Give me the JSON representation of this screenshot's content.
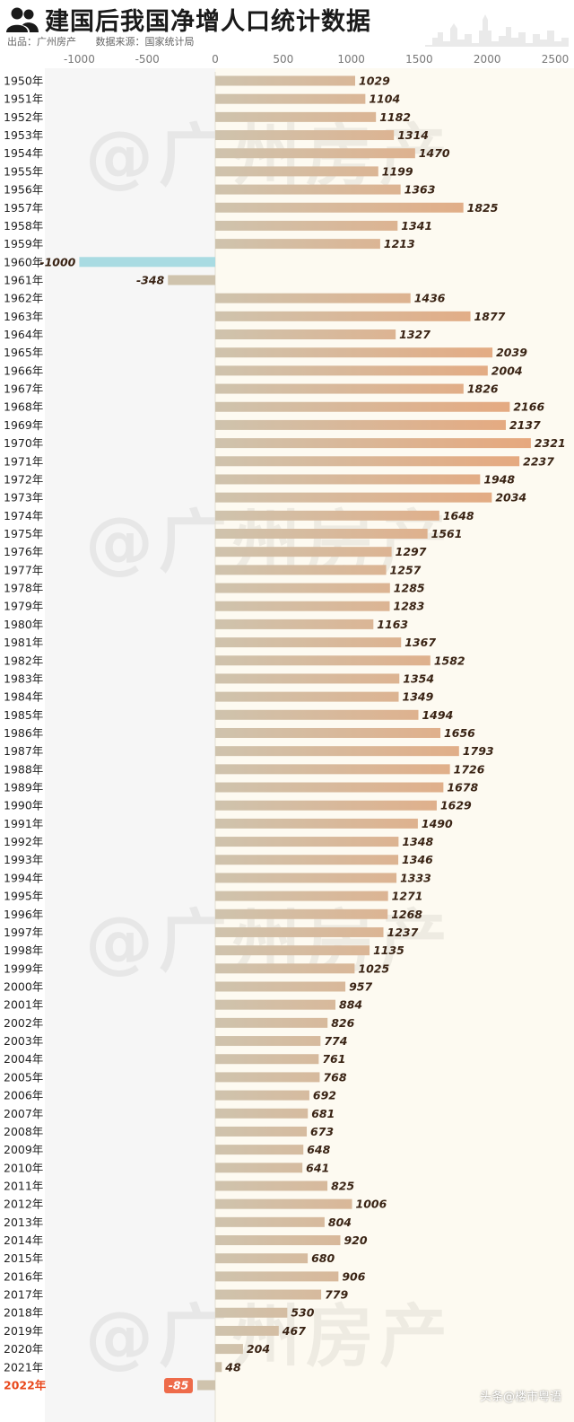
{
  "header": {
    "title": "建国后我国净增人口统计数据",
    "producer": "出品：广州房产",
    "source": "数据来源：国家统计局"
  },
  "watermark": "@广州房产",
  "credit": "头条@楼市粤语",
  "colors": {
    "bar_left": "#cfc3ad",
    "bar_right": "#e8a67a",
    "bar_negative": "#a9dbe2",
    "highlight_label": "#e8471b",
    "highlight_badge": "#ee6b4a",
    "bg_right": "#fdfaf1"
  },
  "chart_data": {
    "type": "bar",
    "orientation": "horizontal",
    "categories": [
      "1950年",
      "1951年",
      "1952年",
      "1953年",
      "1954年",
      "1955年",
      "1956年",
      "1957年",
      "1958年",
      "1959年",
      "1960年",
      "1961年",
      "1962年",
      "1963年",
      "1964年",
      "1965年",
      "1966年",
      "1967年",
      "1968年",
      "1969年",
      "1970年",
      "1971年",
      "1972年",
      "1973年",
      "1974年",
      "1975年",
      "1976年",
      "1977年",
      "1978年",
      "1979年",
      "1980年",
      "1981年",
      "1982年",
      "1983年",
      "1984年",
      "1985年",
      "1986年",
      "1987年",
      "1988年",
      "1989年",
      "1990年",
      "1991年",
      "1992年",
      "1993年",
      "1994年",
      "1995年",
      "1996年",
      "1997年",
      "1998年",
      "1999年",
      "2000年",
      "2001年",
      "2002年",
      "2003年",
      "2004年",
      "2005年",
      "2006年",
      "2007年",
      "2008年",
      "2009年",
      "2010年",
      "2011年",
      "2012年",
      "2013年",
      "2014年",
      "2015年",
      "2016年",
      "2017年",
      "2018年",
      "2019年",
      "2020年",
      "2021年",
      "2022年"
    ],
    "values": [
      1029,
      1104,
      1182,
      1314,
      1470,
      1199,
      1363,
      1825,
      1341,
      1213,
      -1000,
      -348,
      1436,
      1877,
      1327,
      2039,
      2004,
      1826,
      2166,
      2137,
      2321,
      2237,
      1948,
      2034,
      1648,
      1561,
      1297,
      1257,
      1285,
      1283,
      1163,
      1367,
      1582,
      1354,
      1349,
      1494,
      1656,
      1793,
      1726,
      1678,
      1629,
      1490,
      1348,
      1346,
      1333,
      1271,
      1268,
      1237,
      1135,
      1025,
      957,
      884,
      826,
      774,
      761,
      768,
      692,
      681,
      673,
      648,
      641,
      825,
      1006,
      804,
      920,
      680,
      906,
      779,
      530,
      467,
      204,
      48,
      -85
    ],
    "xlim": [
      -1000,
      2500
    ],
    "xticks": [
      -1000,
      -500,
      0,
      500,
      1000,
      1500,
      2000,
      2500
    ],
    "highlight_category": "2022年",
    "grid": false,
    "axis_position": "top"
  }
}
